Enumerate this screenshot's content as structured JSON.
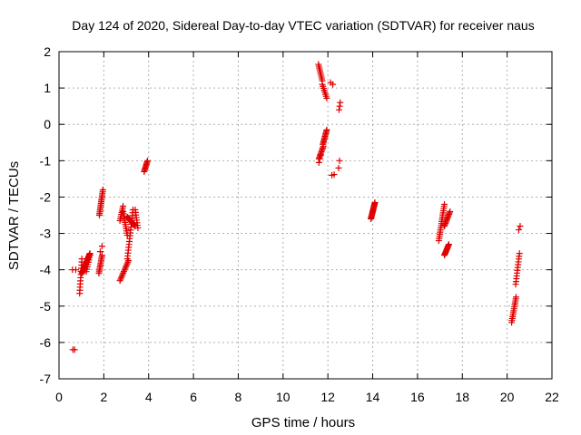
{
  "chart_data": {
    "type": "scatter",
    "title": "Day 124 of 2020, Sidereal Day-to-day VTEC variation (SDTVAR) for receiver naus",
    "xlabel": "GPS time / hours",
    "ylabel": "SDTVAR / TECUs",
    "xlim": [
      0,
      22
    ],
    "ylim": [
      -7,
      2
    ],
    "xticks": [
      "0",
      "2",
      "4",
      "6",
      "8",
      "10",
      "12",
      "14",
      "16",
      "18",
      "20",
      "22"
    ],
    "yticks": [
      "-7",
      "-6",
      "-5",
      "-4",
      "-3",
      "-2",
      "-1",
      "0",
      "1",
      "2"
    ],
    "grid": true,
    "marker": "+",
    "color": "#e00000",
    "segments": [
      {
        "x0": 0.62,
        "x1": 0.7,
        "y0": -6.2,
        "y1": -6.2,
        "n": 2
      },
      {
        "x0": 0.6,
        "x1": 0.75,
        "y0": -4.0,
        "y1": -4.0,
        "n": 2
      },
      {
        "x0": 0.92,
        "x1": 1.02,
        "y0": -4.65,
        "y1": -3.7,
        "n": 12
      },
      {
        "x0": 1.02,
        "x1": 1.38,
        "y0": -4.1,
        "y1": -3.55,
        "n": 24
      },
      {
        "x0": 1.38,
        "x1": 1.22,
        "y0": -3.6,
        "y1": -4.05,
        "n": 8
      },
      {
        "x0": 1.78,
        "x1": 1.92,
        "y0": -4.1,
        "y1": -3.6,
        "n": 12
      },
      {
        "x0": 1.84,
        "x1": 1.92,
        "y0": -3.5,
        "y1": -3.35,
        "n": 2
      },
      {
        "x0": 1.8,
        "x1": 1.96,
        "y0": -2.5,
        "y1": -1.8,
        "n": 16
      },
      {
        "x0": 2.72,
        "x1": 3.1,
        "y0": -4.3,
        "y1": -3.75,
        "n": 14
      },
      {
        "x0": 3.05,
        "x1": 3.3,
        "y0": -3.7,
        "y1": -2.35,
        "n": 18
      },
      {
        "x0": 2.72,
        "x1": 2.86,
        "y0": -2.65,
        "y1": -2.25,
        "n": 8
      },
      {
        "x0": 2.86,
        "x1": 3.05,
        "y0": -2.4,
        "y1": -3.05,
        "n": 12
      },
      {
        "x0": 3.05,
        "x1": 3.4,
        "y0": -2.55,
        "y1": -2.8,
        "n": 16
      },
      {
        "x0": 3.4,
        "x1": 3.52,
        "y0": -2.35,
        "y1": -2.85,
        "n": 8
      },
      {
        "x0": 3.8,
        "x1": 3.95,
        "y0": -1.3,
        "y1": -1.0,
        "n": 10
      },
      {
        "x0": 11.58,
        "x1": 11.75,
        "y0": 1.65,
        "y1": 1.2,
        "n": 10
      },
      {
        "x0": 11.75,
        "x1": 11.95,
        "y0": 1.1,
        "y1": 0.72,
        "n": 8
      },
      {
        "x0": 11.6,
        "x1": 11.8,
        "y0": -0.95,
        "y1": -0.6,
        "n": 10
      },
      {
        "x0": 11.78,
        "x1": 11.95,
        "y0": -0.55,
        "y1": -0.15,
        "n": 12
      },
      {
        "x0": 11.6,
        "x1": 11.68,
        "y0": -1.05,
        "y1": -0.85,
        "n": 3
      },
      {
        "x0": 12.18,
        "x1": 12.28,
        "y0": -1.4,
        "y1": -1.38,
        "n": 2
      },
      {
        "x0": 12.12,
        "x1": 12.22,
        "y0": 1.15,
        "y1": 1.1,
        "n": 2
      },
      {
        "x0": 12.48,
        "x1": 12.52,
        "y0": -1.2,
        "y1": -1.0,
        "n": 2
      },
      {
        "x0": 12.5,
        "x1": 12.55,
        "y0": 0.4,
        "y1": 0.6,
        "n": 3
      },
      {
        "x0": 13.92,
        "x1": 14.1,
        "y0": -2.6,
        "y1": -2.15,
        "n": 18
      },
      {
        "x0": 16.95,
        "x1": 17.2,
        "y0": -3.2,
        "y1": -2.2,
        "n": 18
      },
      {
        "x0": 17.2,
        "x1": 17.4,
        "y0": -3.6,
        "y1": -3.3,
        "n": 12
      },
      {
        "x0": 17.2,
        "x1": 17.45,
        "y0": -2.8,
        "y1": -2.4,
        "n": 12
      },
      {
        "x0": 20.2,
        "x1": 20.4,
        "y0": -5.45,
        "y1": -4.75,
        "n": 14
      },
      {
        "x0": 20.38,
        "x1": 20.55,
        "y0": -4.4,
        "y1": -3.55,
        "n": 12
      },
      {
        "x0": 20.52,
        "x1": 20.58,
        "y0": -2.9,
        "y1": -2.8,
        "n": 2
      }
    ]
  }
}
